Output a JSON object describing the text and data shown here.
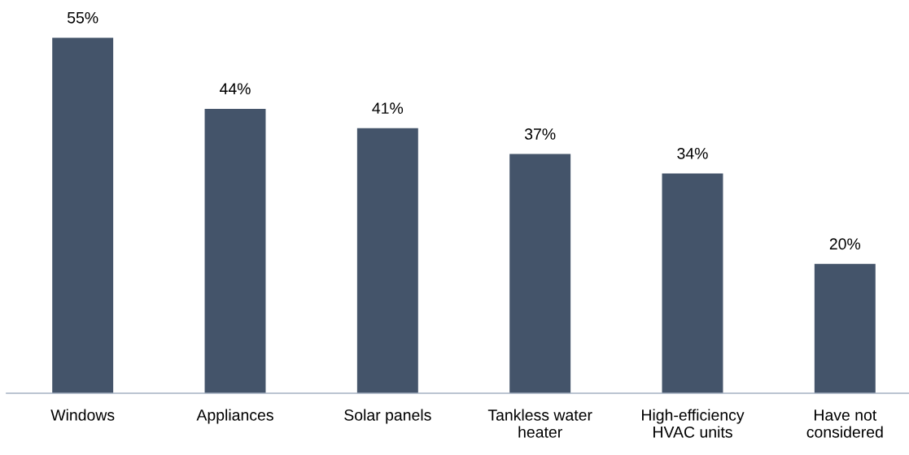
{
  "chart_data": {
    "type": "bar",
    "categories": [
      "Windows",
      "Appliances",
      "Solar panels",
      "Tankless water\nheater",
      "High-efficiency\nHVAC units",
      "Have not\nconsidered"
    ],
    "values": [
      55,
      44,
      41,
      37,
      34,
      20
    ],
    "value_labels": [
      "55%",
      "44%",
      "41%",
      "37%",
      "34%",
      "20%"
    ],
    "color": "#44546a",
    "tick_labels": "x"
  }
}
